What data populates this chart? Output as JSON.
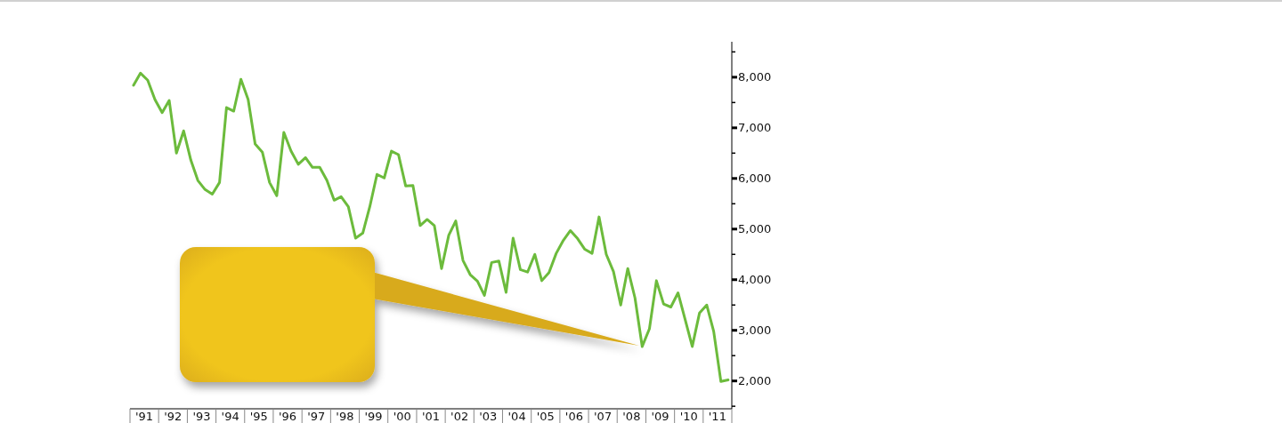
{
  "chart_data": {
    "type": "line",
    "x": [
      "1991-02-15",
      "1991-05-15",
      "1991-08-15",
      "1991-11-15",
      "1992-02-15",
      "1992-05-15",
      "1992-08-15",
      "1992-11-15",
      "1993-02-15",
      "1993-05-15",
      "1993-08-15",
      "1993-11-15",
      "1994-02-15",
      "1994-05-15",
      "1994-08-15",
      "1994-11-15",
      "1995-02-15",
      "1995-05-15",
      "1995-08-15",
      "1995-11-15",
      "1996-02-15",
      "1996-05-15",
      "1996-08-15",
      "1996-11-15",
      "1997-02-15",
      "1997-05-15",
      "1997-08-15",
      "1997-11-15",
      "1998-02-15",
      "1998-05-15",
      "1998-08-15",
      "1998-11-15",
      "1999-02-15",
      "1999-05-15",
      "1999-08-15",
      "1999-11-15",
      "2000-02-15",
      "2000-05-15",
      "2000-08-15",
      "2000-11-15",
      "2001-02-15",
      "2001-05-15",
      "2001-08-15",
      "2001-11-15",
      "2002-02-15",
      "2002-05-15",
      "2002-08-15",
      "2002-11-15",
      "2003-02-15",
      "2003-05-15",
      "2003-08-15",
      "2003-11-15",
      "2004-02-15",
      "2004-05-15",
      "2004-08-15",
      "2004-11-15",
      "2005-02-15",
      "2005-05-15",
      "2005-08-15",
      "2005-11-15",
      "2006-02-15",
      "2006-05-15",
      "2006-08-15",
      "2006-11-15",
      "2007-02-15",
      "2007-05-15",
      "2007-08-15",
      "2007-11-15",
      "2008-02-15",
      "2008-05-15",
      "2008-08-15",
      "2008-11-15",
      "2009-02-15",
      "2009-05-15",
      "2009-08-15",
      "2009-11-15",
      "2010-02-15",
      "2010-05-15",
      "2010-08-15",
      "2010-11-15",
      "2011-02-15",
      "2011-05-15",
      "2011-08-15",
      "2011-11-15"
    ],
    "series": [
      {
        "color": "#6cbb3c",
        "values": [
          7840,
          8080,
          7940,
          7560,
          7300,
          7540,
          6500,
          6940,
          6360,
          5960,
          5780,
          5690,
          5920,
          7400,
          7330,
          7960,
          7560,
          6680,
          6520,
          5920,
          5660,
          6910,
          6540,
          6280,
          6410,
          6220,
          6220,
          5960,
          5570,
          5640,
          5440,
          4820,
          4920,
          5440,
          6080,
          6010,
          6540,
          6470,
          5850,
          5860,
          5070,
          5190,
          5070,
          4220,
          4880,
          5160,
          4380,
          4100,
          3970,
          3690,
          4340,
          4370,
          3750,
          4820,
          4200,
          4150,
          4500,
          3980,
          4140,
          4520,
          4780,
          4970,
          4810,
          4600,
          4520,
          5240,
          4500,
          4160,
          3500,
          4220,
          3640,
          2680,
          3030,
          3980,
          3520,
          3460,
          3740,
          3220,
          2680,
          3340,
          3500,
          2980,
          1990,
          2020
        ]
      }
    ],
    "xlim": [
      "1991",
      "2012"
    ],
    "xticks": [
      {
        "value": "1991",
        "label": null
      },
      {
        "value": "1991-07-02",
        "label": "'91"
      },
      {
        "value": "1992",
        "label": null
      },
      {
        "value": "1992-07-02",
        "label": "'92"
      },
      {
        "value": "1993",
        "label": null
      },
      {
        "value": "1993-07-02",
        "label": "'93"
      },
      {
        "value": "1994",
        "label": null
      },
      {
        "value": "1994-07-02",
        "label": "'94"
      },
      {
        "value": "1995",
        "label": null
      },
      {
        "value": "1995-07-02",
        "label": "'95"
      },
      {
        "value": "1996",
        "label": null
      },
      {
        "value": "1996-07-02",
        "label": "'96"
      },
      {
        "value": "1997",
        "label": null
      },
      {
        "value": "1997-07-02",
        "label": "'97"
      },
      {
        "value": "1998",
        "label": null
      },
      {
        "value": "1998-07-02",
        "label": "'98"
      },
      {
        "value": "1999",
        "label": null
      },
      {
        "value": "1999-07-02",
        "label": "'99"
      },
      {
        "value": "2000",
        "label": null
      },
      {
        "value": "2000-07-02",
        "label": "'00"
      },
      {
        "value": "2001",
        "label": null
      },
      {
        "value": "2001-07-02",
        "label": "'01"
      },
      {
        "value": "2002",
        "label": null
      },
      {
        "value": "2002-07-02",
        "label": "'02"
      },
      {
        "value": "2003",
        "label": null
      },
      {
        "value": "2003-07-02",
        "label": "'03"
      },
      {
        "value": "2004",
        "label": null
      },
      {
        "value": "2004-07-02",
        "label": "'04"
      },
      {
        "value": "2005",
        "label": null
      },
      {
        "value": "2005-07-02",
        "label": "'05"
      },
      {
        "value": "2006",
        "label": null
      },
      {
        "value": "2006-07-02",
        "label": "'06"
      },
      {
        "value": "2007",
        "label": null
      },
      {
        "value": "2007-07-02",
        "label": "'07"
      },
      {
        "value": "2008",
        "label": null
      },
      {
        "value": "2008-07-02",
        "label": "'08"
      },
      {
        "value": "2009",
        "label": null
      },
      {
        "value": "2009-07-02",
        "label": "'09"
      },
      {
        "value": "2010",
        "label": null
      },
      {
        "value": "2010-07-02",
        "label": "'10"
      },
      {
        "value": "2011",
        "label": null
      },
      {
        "value": "2011-07-02",
        "label": "'11"
      },
      {
        "value": "2012",
        "label": null
      }
    ],
    "ylim": [
      1450,
      8700
    ],
    "yticks": [
      {
        "value": 1500,
        "label": null
      },
      {
        "value": 2000,
        "label": "2,000"
      },
      {
        "value": 2500,
        "label": null
      },
      {
        "value": 3000,
        "label": "3,000"
      },
      {
        "value": 3500,
        "label": null
      },
      {
        "value": 4000,
        "label": "4,000"
      },
      {
        "value": 4500,
        "label": null
      },
      {
        "value": 5000,
        "label": "5,000"
      },
      {
        "value": 5500,
        "label": null
      },
      {
        "value": 6000,
        "label": "6,000"
      },
      {
        "value": 6500,
        "label": null
      },
      {
        "value": 7000,
        "label": "7,000"
      },
      {
        "value": 7500,
        "label": null
      },
      {
        "value": 8000,
        "label": "8,000"
      },
      {
        "value": 8500,
        "label": null
      }
    ],
    "grid": false
  }
}
